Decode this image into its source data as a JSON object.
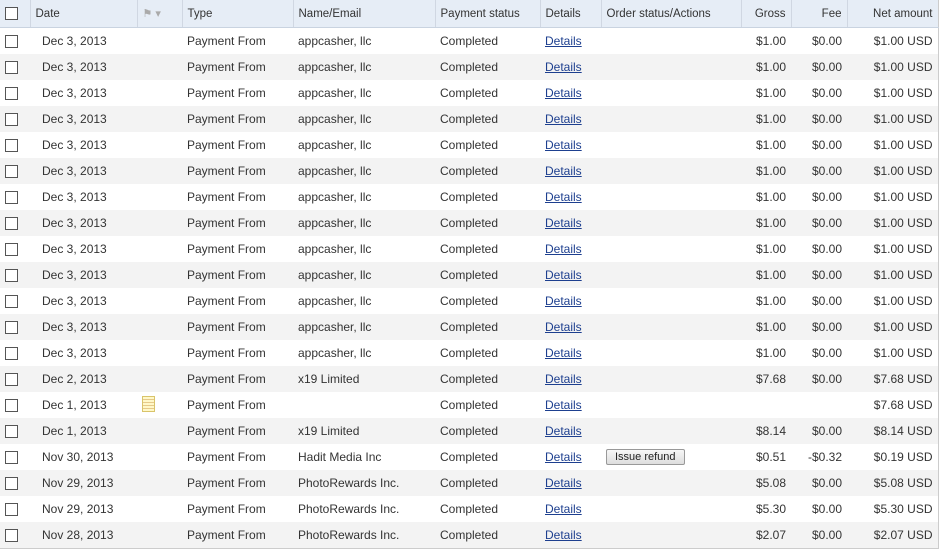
{
  "headers": {
    "date": "Date",
    "type": "Type",
    "name": "Name/Email",
    "status": "Payment status",
    "details": "Details",
    "order": "Order status/Actions",
    "gross": "Gross",
    "fee": "Fee",
    "net": "Net amount"
  },
  "icons": {
    "flag": "flag-icon",
    "note": "note-icon"
  },
  "rows": [
    {
      "date": "Dec 3, 2013",
      "type": "Payment From",
      "name": "appcasher, llc",
      "status": "Completed",
      "details": "Details",
      "action": "",
      "gross": "$1.00",
      "fee": "$0.00",
      "net": "$1.00 USD",
      "note": false
    },
    {
      "date": "Dec 3, 2013",
      "type": "Payment From",
      "name": "appcasher, llc",
      "status": "Completed",
      "details": "Details",
      "action": "",
      "gross": "$1.00",
      "fee": "$0.00",
      "net": "$1.00 USD",
      "note": false
    },
    {
      "date": "Dec 3, 2013",
      "type": "Payment From",
      "name": "appcasher, llc",
      "status": "Completed",
      "details": "Details",
      "action": "",
      "gross": "$1.00",
      "fee": "$0.00",
      "net": "$1.00 USD",
      "note": false
    },
    {
      "date": "Dec 3, 2013",
      "type": "Payment From",
      "name": "appcasher, llc",
      "status": "Completed",
      "details": "Details",
      "action": "",
      "gross": "$1.00",
      "fee": "$0.00",
      "net": "$1.00 USD",
      "note": false
    },
    {
      "date": "Dec 3, 2013",
      "type": "Payment From",
      "name": "appcasher, llc",
      "status": "Completed",
      "details": "Details",
      "action": "",
      "gross": "$1.00",
      "fee": "$0.00",
      "net": "$1.00 USD",
      "note": false
    },
    {
      "date": "Dec 3, 2013",
      "type": "Payment From",
      "name": "appcasher, llc",
      "status": "Completed",
      "details": "Details",
      "action": "",
      "gross": "$1.00",
      "fee": "$0.00",
      "net": "$1.00 USD",
      "note": false
    },
    {
      "date": "Dec 3, 2013",
      "type": "Payment From",
      "name": "appcasher, llc",
      "status": "Completed",
      "details": "Details",
      "action": "",
      "gross": "$1.00",
      "fee": "$0.00",
      "net": "$1.00 USD",
      "note": false
    },
    {
      "date": "Dec 3, 2013",
      "type": "Payment From",
      "name": "appcasher, llc",
      "status": "Completed",
      "details": "Details",
      "action": "",
      "gross": "$1.00",
      "fee": "$0.00",
      "net": "$1.00 USD",
      "note": false
    },
    {
      "date": "Dec 3, 2013",
      "type": "Payment From",
      "name": "appcasher, llc",
      "status": "Completed",
      "details": "Details",
      "action": "",
      "gross": "$1.00",
      "fee": "$0.00",
      "net": "$1.00 USD",
      "note": false
    },
    {
      "date": "Dec 3, 2013",
      "type": "Payment From",
      "name": "appcasher, llc",
      "status": "Completed",
      "details": "Details",
      "action": "",
      "gross": "$1.00",
      "fee": "$0.00",
      "net": "$1.00 USD",
      "note": false
    },
    {
      "date": "Dec 3, 2013",
      "type": "Payment From",
      "name": "appcasher, llc",
      "status": "Completed",
      "details": "Details",
      "action": "",
      "gross": "$1.00",
      "fee": "$0.00",
      "net": "$1.00 USD",
      "note": false
    },
    {
      "date": "Dec 3, 2013",
      "type": "Payment From",
      "name": "appcasher, llc",
      "status": "Completed",
      "details": "Details",
      "action": "",
      "gross": "$1.00",
      "fee": "$0.00",
      "net": "$1.00 USD",
      "note": false
    },
    {
      "date": "Dec 3, 2013",
      "type": "Payment From",
      "name": "appcasher, llc",
      "status": "Completed",
      "details": "Details",
      "action": "",
      "gross": "$1.00",
      "fee": "$0.00",
      "net": "$1.00 USD",
      "note": false
    },
    {
      "date": "Dec 2, 2013",
      "type": "Payment From",
      "name": "x19 Limited",
      "status": "Completed",
      "details": "Details",
      "action": "",
      "gross": "$7.68",
      "fee": "$0.00",
      "net": "$7.68 USD",
      "note": false
    },
    {
      "date": "Dec 1, 2013",
      "type": "Payment From",
      "name": "",
      "status": "Completed",
      "details": "Details",
      "action": "",
      "gross": "",
      "fee": "",
      "net": "$7.68 USD",
      "note": true
    },
    {
      "date": "Dec 1, 2013",
      "type": "Payment From",
      "name": "x19 Limited",
      "status": "Completed",
      "details": "Details",
      "action": "",
      "gross": "$8.14",
      "fee": "$0.00",
      "net": "$8.14 USD",
      "note": false
    },
    {
      "date": "Nov 30, 2013",
      "type": "Payment From",
      "name": "Hadit Media Inc",
      "status": "Completed",
      "details": "Details",
      "action": "Issue refund",
      "gross": "$0.51",
      "fee": "-$0.32",
      "net": "$0.19 USD",
      "note": false
    },
    {
      "date": "Nov 29, 2013",
      "type": "Payment From",
      "name": "PhotoRewards Inc.",
      "status": "Completed",
      "details": "Details",
      "action": "",
      "gross": "$5.08",
      "fee": "$0.00",
      "net": "$5.08 USD",
      "note": false
    },
    {
      "date": "Nov 29, 2013",
      "type": "Payment From",
      "name": "PhotoRewards Inc.",
      "status": "Completed",
      "details": "Details",
      "action": "",
      "gross": "$5.30",
      "fee": "$0.00",
      "net": "$5.30 USD",
      "note": false
    },
    {
      "date": "Nov 28, 2013",
      "type": "Payment From",
      "name": "PhotoRewards Inc.",
      "status": "Completed",
      "details": "Details",
      "action": "",
      "gross": "$2.07",
      "fee": "$0.00",
      "net": "$2.07 USD",
      "note": false
    }
  ]
}
